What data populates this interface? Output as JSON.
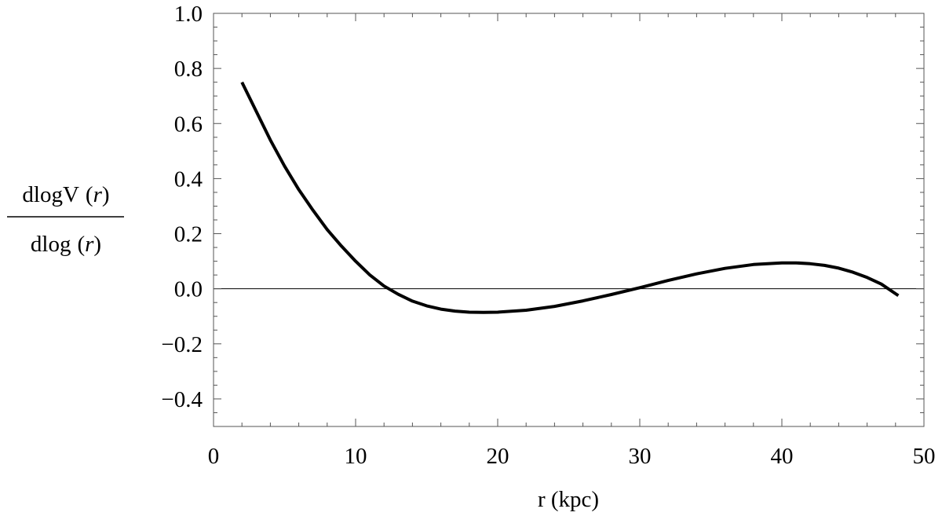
{
  "chart_data": {
    "type": "line",
    "title": "",
    "xlabel": "r (kpc)",
    "ylabel": {
      "numerator_text": "dlogV",
      "denominator_text": "dlog",
      "variable": "r",
      "open_paren": "(",
      "close_paren": ")"
    },
    "xlim": [
      0,
      50
    ],
    "ylim": [
      -0.5,
      1.0
    ],
    "x_ticks": [
      0,
      10,
      20,
      30,
      40,
      50
    ],
    "x_tick_labels": [
      "0",
      "10",
      "20",
      "30",
      "40",
      "50"
    ],
    "y_ticks": [
      -0.4,
      -0.2,
      0.0,
      0.2,
      0.4,
      0.6,
      0.8,
      1.0
    ],
    "y_tick_labels": [
      "−0.4",
      "−0.2",
      "0.0",
      "0.2",
      "0.4",
      "0.6",
      "0.8",
      "1.0"
    ],
    "x_minor_step": 2,
    "y_minor_step": 0.05,
    "reference_line_y": 0.0,
    "grid": false,
    "frame": true,
    "series": [
      {
        "color": "#000000",
        "x": [
          2,
          3,
          4,
          5,
          6,
          7,
          8,
          9,
          10,
          11,
          12,
          13,
          14,
          15,
          16,
          17,
          18,
          19,
          20,
          22,
          24,
          26,
          28,
          30,
          32,
          34,
          36,
          38,
          40,
          41,
          42,
          43,
          44,
          45,
          46,
          47,
          48.2
        ],
        "y": [
          0.75,
          0.645,
          0.54,
          0.445,
          0.36,
          0.285,
          0.215,
          0.155,
          0.1,
          0.05,
          0.01,
          -0.02,
          -0.045,
          -0.062,
          -0.074,
          -0.081,
          -0.085,
          -0.086,
          -0.085,
          -0.078,
          -0.064,
          -0.044,
          -0.021,
          0.004,
          0.03,
          0.054,
          0.074,
          0.088,
          0.094,
          0.094,
          0.091,
          0.085,
          0.075,
          0.06,
          0.041,
          0.017,
          -0.025
        ]
      }
    ]
  }
}
